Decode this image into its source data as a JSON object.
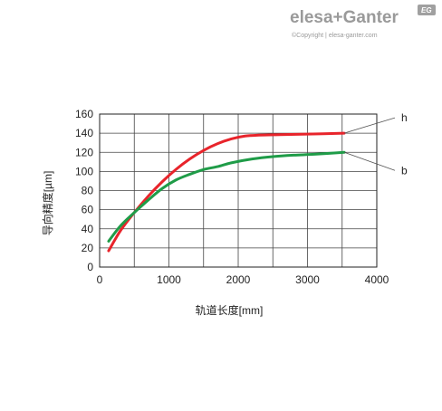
{
  "brand": {
    "name": "elesa+Ganter",
    "copyright": "©Copyright | elesa-ganter.com",
    "badge": "EG",
    "color": "#9a9a9a"
  },
  "chart_data": {
    "type": "line",
    "title": "",
    "xlabel": "轨道长度[mm]",
    "ylabel": "导向精度[µm]",
    "xlim": [
      0,
      4000
    ],
    "ylim": [
      0,
      160
    ],
    "xticks": [
      0,
      1000,
      2000,
      3000,
      4000
    ],
    "yticks": [
      0,
      20,
      40,
      60,
      80,
      100,
      120,
      140,
      160
    ],
    "xtick_labels": [
      "0",
      "1000",
      "2000",
      "3000",
      "4000"
    ],
    "ytick_labels": [
      "0",
      "20",
      "40",
      "60",
      "80",
      "100",
      "120",
      "140",
      "160"
    ],
    "grid": true,
    "series": [
      {
        "name": "h",
        "color": "#e8242b",
        "x": [
          130,
          300,
          500,
          700,
          900,
          1100,
          1300,
          1500,
          1700,
          1900,
          2100,
          2300,
          2600,
          3000,
          3530
        ],
        "y": [
          17,
          38,
          57,
          74,
          89,
          102,
          113,
          122,
          129,
          134,
          137,
          138,
          138.5,
          139,
          140
        ]
      },
      {
        "name": "b",
        "color": "#1f9c48",
        "x": [
          130,
          300,
          500,
          700,
          900,
          1100,
          1300,
          1500,
          1700,
          1900,
          2200,
          2500,
          2800,
          3100,
          3530
        ],
        "y": [
          27,
          43,
          57,
          70,
          82,
          91,
          97,
          102,
          105,
          109,
          113,
          115.5,
          117,
          118,
          120
        ]
      }
    ]
  }
}
